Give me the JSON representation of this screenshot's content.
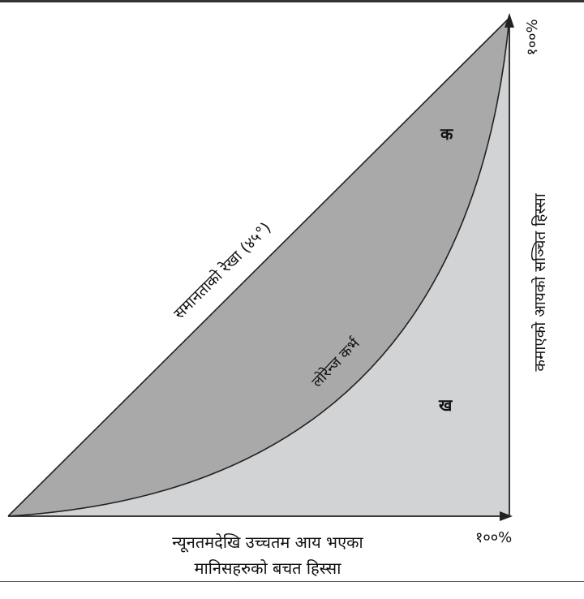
{
  "diagram": {
    "equality_line_label": "समानताको रेखा (४५°)",
    "lorenz_curve_label": "लोरेन्ज कर्भ",
    "area_a_label": "क",
    "area_b_label": "ख",
    "y_axis_label": "कमाएको आयको सञ्चित हिस्सा",
    "y_axis_max": "१००%",
    "x_axis_max": "१००%",
    "x_axis_label_line1": "न्यूनतमदेखि उच्चतम आय भएका",
    "x_axis_label_line2": "मानिसहरुको बचत हिस्सा",
    "colors": {
      "area_a": "#a9a9a9",
      "area_b": "#d2d3d5",
      "lines": "#222222"
    }
  }
}
